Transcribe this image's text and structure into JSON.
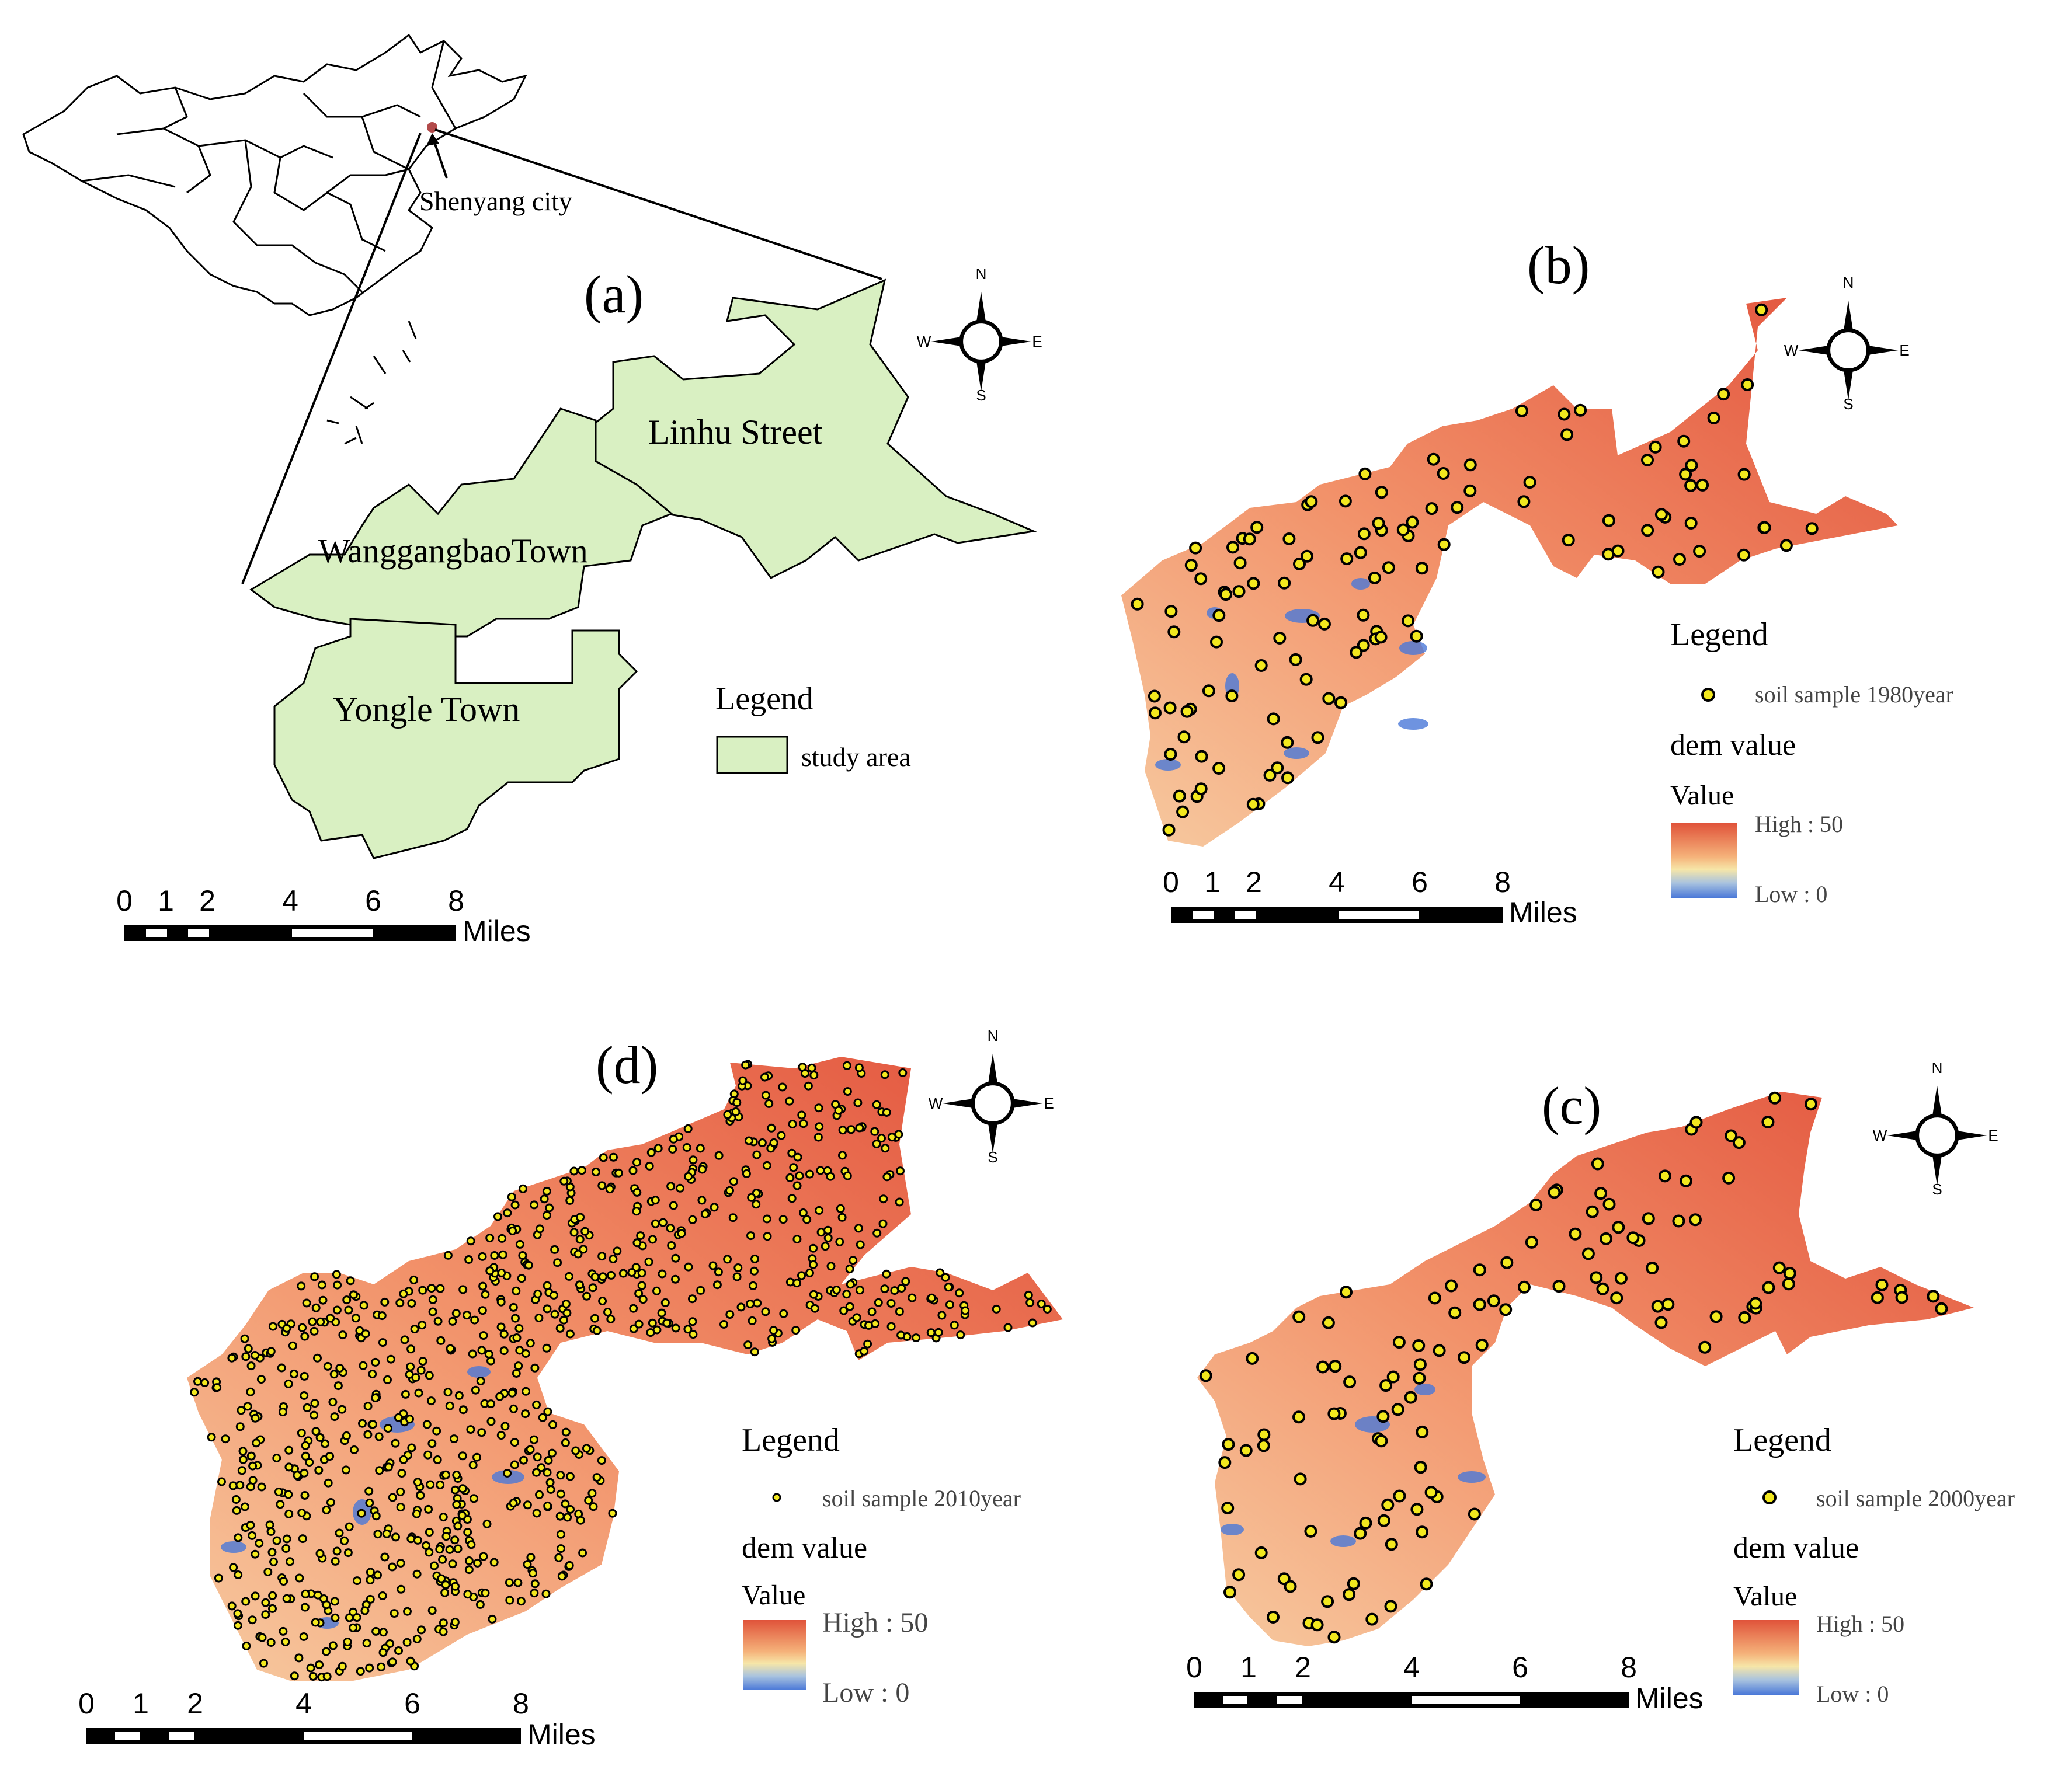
{
  "panels": {
    "a": {
      "label": "(a)",
      "city_label": "Shenyang city",
      "regions": [
        "Linhu Street",
        "WanggangbaoTown",
        "Yongle Town"
      ],
      "legend_title": "Legend",
      "legend_item": "study area",
      "study_area_color": "#d9f0c2"
    },
    "b": {
      "label": "(b)",
      "legend_title": "Legend",
      "sample_label": "soil sample 1980year",
      "dem_title": "dem value",
      "value_title": "Value",
      "high_label": "High : 50",
      "low_label": "Low : 0"
    },
    "c": {
      "label": "(c)",
      "legend_title": "Legend",
      "sample_label": "soil sample 2000year",
      "dem_title": "dem value",
      "value_title": "Value",
      "high_label": "High : 50",
      "low_label": "Low : 0"
    },
    "d": {
      "label": "(d)",
      "legend_title": "Legend",
      "sample_label": "soil sample 2010year",
      "dem_title": "dem value",
      "value_title": "Value",
      "high_label": "High : 50",
      "low_label": "Low : 0"
    }
  },
  "compass": {
    "n": "N",
    "s": "S",
    "e": "E",
    "w": "W"
  },
  "scalebar": {
    "ticks": [
      "0",
      "1",
      "2",
      "4",
      "6",
      "8"
    ],
    "unit": "Miles"
  },
  "colors": {
    "dem_high": "#e0533a",
    "dem_mid": "#f6e6a8",
    "dem_low": "#4a78d8",
    "sample_fill": "#f2e81e"
  }
}
